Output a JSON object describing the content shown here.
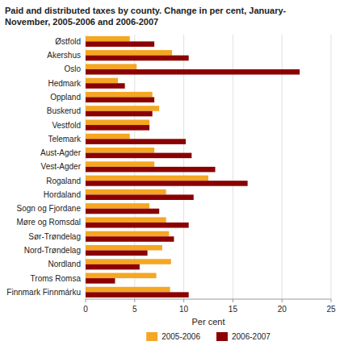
{
  "chart_data": {
    "type": "bar",
    "orientation": "horizontal",
    "title": "Paid and distributed taxes by county. Change in per cent, January-\nNovember, 2005-2006 and 2006-2007",
    "categories": [
      "Østfold",
      "Akershus",
      "Oslo",
      "Hedmark",
      "Oppland",
      "Buskerud",
      "Vestfold",
      "Telemark",
      "Aust-Agder",
      "Vest-Agder",
      "Rogaland",
      "Hordaland",
      "Sogn og Fjordane",
      "Møre og Romsdal",
      "Sør-Trøndelag",
      "Nord-Trøndelag",
      "Nordland",
      "Troms Romsa",
      "Finnmark Finnmárku"
    ],
    "series": [
      {
        "name": "2005-2006",
        "color": "#F5A623",
        "values": [
          4.5,
          8.8,
          5.2,
          3.3,
          6.8,
          7.5,
          6.5,
          4.5,
          7.0,
          7.0,
          12.5,
          8.2,
          6.5,
          8.2,
          8.5,
          7.8,
          8.7,
          7.2,
          8.6
        ]
      },
      {
        "name": "2006-2007",
        "color": "#8B0000",
        "values": [
          7.0,
          10.5,
          21.8,
          4.0,
          7.0,
          6.8,
          6.5,
          10.2,
          10.8,
          13.2,
          16.5,
          11.0,
          7.5,
          10.5,
          9.0,
          6.3,
          5.5,
          3.0,
          10.5
        ]
      }
    ],
    "xlabel": "Per cent",
    "xlim": [
      0,
      25
    ],
    "xticks": [
      0,
      5,
      10,
      15,
      20,
      25
    ],
    "grid": true,
    "legend": "bottom"
  }
}
